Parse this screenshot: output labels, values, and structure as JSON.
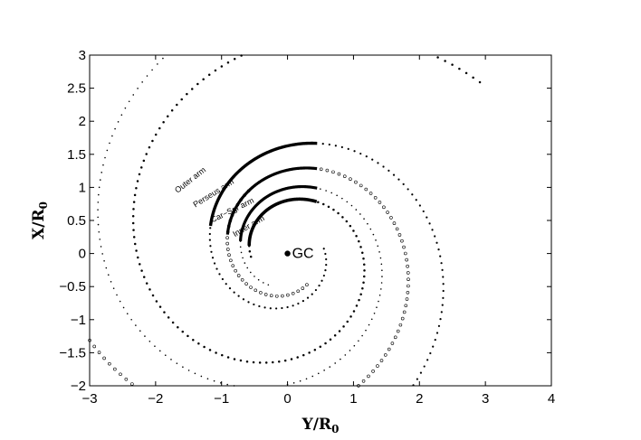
{
  "chart_data": {
    "type": "scatter",
    "xlabel_main": "Y/R",
    "xlabel_sub": "0",
    "ylabel_main": "X/R",
    "ylabel_sub": "0",
    "xlim": [
      -3,
      4
    ],
    "ylim": [
      -2,
      3
    ],
    "xticks": [
      "−3",
      "−2",
      "−1",
      "0",
      "1",
      "2",
      "3",
      "4"
    ],
    "yticks": [
      "−2",
      "−1.5",
      "−1",
      "−0.5",
      "0",
      "0.5",
      "1",
      "1.5",
      "2",
      "2.5",
      "3"
    ],
    "grid": false,
    "center": {
      "label": "GC",
      "x": 0,
      "y": 0
    },
    "model": {
      "spiral": "logarithmic",
      "pitch_angle_deg": 12.5,
      "observed_arc_y_range": [
        -1.2,
        0.45
      ]
    },
    "arms": [
      {
        "name": "Outer arm",
        "marker": "dot",
        "peak": {
          "x": -0.2,
          "y": 1.57
        }
      },
      {
        "name": "Perseus arm",
        "marker": "circle",
        "peak": {
          "x": -0.2,
          "y": 1.2
        }
      },
      {
        "name": "Car−Sgr arm",
        "marker": "small-dot",
        "peak": {
          "x": -0.2,
          "y": 0.92
        }
      },
      {
        "name": "Inner arm",
        "marker": "bold-dot",
        "peak": {
          "x": -0.2,
          "y": 0.73
        }
      }
    ]
  }
}
